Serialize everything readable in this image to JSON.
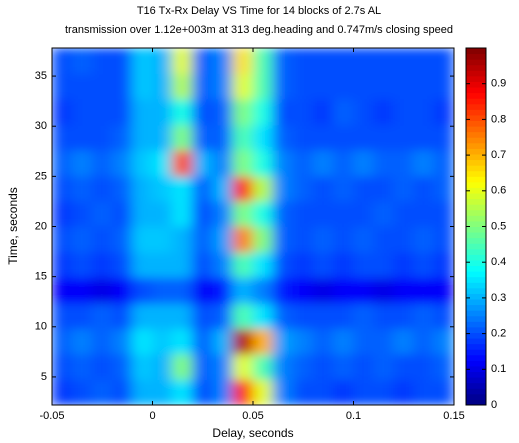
{
  "chart_data": {
    "type": "heatmap",
    "title": "T16 Tx-Rx Delay VS Time for 14 blocks of 2.7s AL",
    "subtitle": "transmission over 1.12e+003m at 313 deg.heading and 0.747m/s closing speed",
    "xlabel": "Delay, seconds",
    "ylabel": "Time, seconds",
    "xlim": [
      -0.05,
      0.15
    ],
    "xticks": [
      -0.05,
      0,
      0.05,
      0.1,
      0.15
    ],
    "ylim": [
      2.2,
      37.8
    ],
    "yticks": [
      5,
      10,
      15,
      20,
      25,
      30,
      35
    ],
    "colormap": "jet",
    "clim": [
      0,
      1
    ],
    "cticks": [
      0,
      0.1,
      0.2,
      0.3,
      0.4,
      0.5,
      0.6,
      0.7,
      0.8,
      0.9
    ],
    "x": [
      -0.045,
      -0.035,
      -0.025,
      -0.015,
      -0.005,
      0.005,
      0.015,
      0.025,
      0.035,
      0.045,
      0.055,
      0.065,
      0.075,
      0.085,
      0.095,
      0.105,
      0.115,
      0.125,
      0.135,
      0.145
    ],
    "y": [
      3.47,
      6.01,
      8.56,
      11.1,
      13.6,
      16.2,
      18.7,
      21.3,
      23.8,
      26.3,
      28.9,
      31.4,
      34.0,
      36.5
    ],
    "z": [
      [
        0.18,
        0.2,
        0.22,
        0.2,
        0.3,
        0.3,
        0.35,
        0.2,
        0.25,
        0.85,
        0.6,
        0.25,
        0.2,
        0.2,
        0.18,
        0.2,
        0.2,
        0.18,
        0.2,
        0.2
      ],
      [
        0.2,
        0.22,
        0.2,
        0.22,
        0.32,
        0.3,
        0.5,
        0.22,
        0.25,
        0.6,
        0.45,
        0.25,
        0.22,
        0.2,
        0.22,
        0.2,
        0.22,
        0.2,
        0.2,
        0.22
      ],
      [
        0.22,
        0.25,
        0.22,
        0.25,
        0.35,
        0.32,
        0.35,
        0.22,
        0.3,
        0.95,
        0.7,
        0.28,
        0.25,
        0.22,
        0.25,
        0.22,
        0.22,
        0.25,
        0.22,
        0.25
      ],
      [
        0.2,
        0.2,
        0.22,
        0.2,
        0.3,
        0.3,
        0.3,
        0.2,
        0.22,
        0.45,
        0.35,
        0.22,
        0.2,
        0.2,
        0.2,
        0.22,
        0.2,
        0.2,
        0.22,
        0.2
      ],
      [
        0.12,
        0.12,
        0.1,
        0.12,
        0.2,
        0.22,
        0.22,
        0.12,
        0.15,
        0.3,
        0.25,
        0.15,
        0.12,
        0.1,
        0.12,
        0.12,
        0.1,
        0.12,
        0.12,
        0.12
      ],
      [
        0.18,
        0.2,
        0.18,
        0.2,
        0.3,
        0.3,
        0.3,
        0.2,
        0.25,
        0.45,
        0.35,
        0.2,
        0.18,
        0.2,
        0.18,
        0.2,
        0.2,
        0.18,
        0.2,
        0.18
      ],
      [
        0.2,
        0.22,
        0.2,
        0.22,
        0.32,
        0.32,
        0.3,
        0.22,
        0.28,
        0.75,
        0.5,
        0.22,
        0.2,
        0.22,
        0.2,
        0.22,
        0.2,
        0.2,
        0.22,
        0.2
      ],
      [
        0.18,
        0.2,
        0.22,
        0.2,
        0.3,
        0.3,
        0.35,
        0.2,
        0.25,
        0.5,
        0.4,
        0.22,
        0.2,
        0.2,
        0.2,
        0.2,
        0.22,
        0.2,
        0.2,
        0.2
      ],
      [
        0.2,
        0.22,
        0.2,
        0.22,
        0.3,
        0.32,
        0.35,
        0.22,
        0.3,
        0.85,
        0.55,
        0.25,
        0.22,
        0.2,
        0.22,
        0.2,
        0.2,
        0.22,
        0.2,
        0.22
      ],
      [
        0.22,
        0.25,
        0.22,
        0.25,
        0.32,
        0.35,
        0.8,
        0.3,
        0.25,
        0.5,
        0.4,
        0.25,
        0.22,
        0.25,
        0.22,
        0.25,
        0.22,
        0.22,
        0.25,
        0.22
      ],
      [
        0.2,
        0.2,
        0.2,
        0.22,
        0.3,
        0.3,
        0.5,
        0.22,
        0.22,
        0.45,
        0.35,
        0.22,
        0.2,
        0.2,
        0.2,
        0.2,
        0.2,
        0.2,
        0.2,
        0.2
      ],
      [
        0.18,
        0.2,
        0.2,
        0.2,
        0.3,
        0.3,
        0.4,
        0.2,
        0.22,
        0.5,
        0.4,
        0.2,
        0.2,
        0.18,
        0.22,
        0.2,
        0.18,
        0.2,
        0.2,
        0.18
      ],
      [
        0.2,
        0.2,
        0.2,
        0.2,
        0.32,
        0.3,
        0.55,
        0.22,
        0.25,
        0.6,
        0.45,
        0.22,
        0.2,
        0.2,
        0.2,
        0.2,
        0.2,
        0.2,
        0.2,
        0.2
      ],
      [
        0.2,
        0.22,
        0.2,
        0.2,
        0.32,
        0.3,
        0.6,
        0.22,
        0.25,
        0.65,
        0.45,
        0.22,
        0.2,
        0.2,
        0.2,
        0.2,
        0.2,
        0.2,
        0.2,
        0.2
      ]
    ]
  }
}
